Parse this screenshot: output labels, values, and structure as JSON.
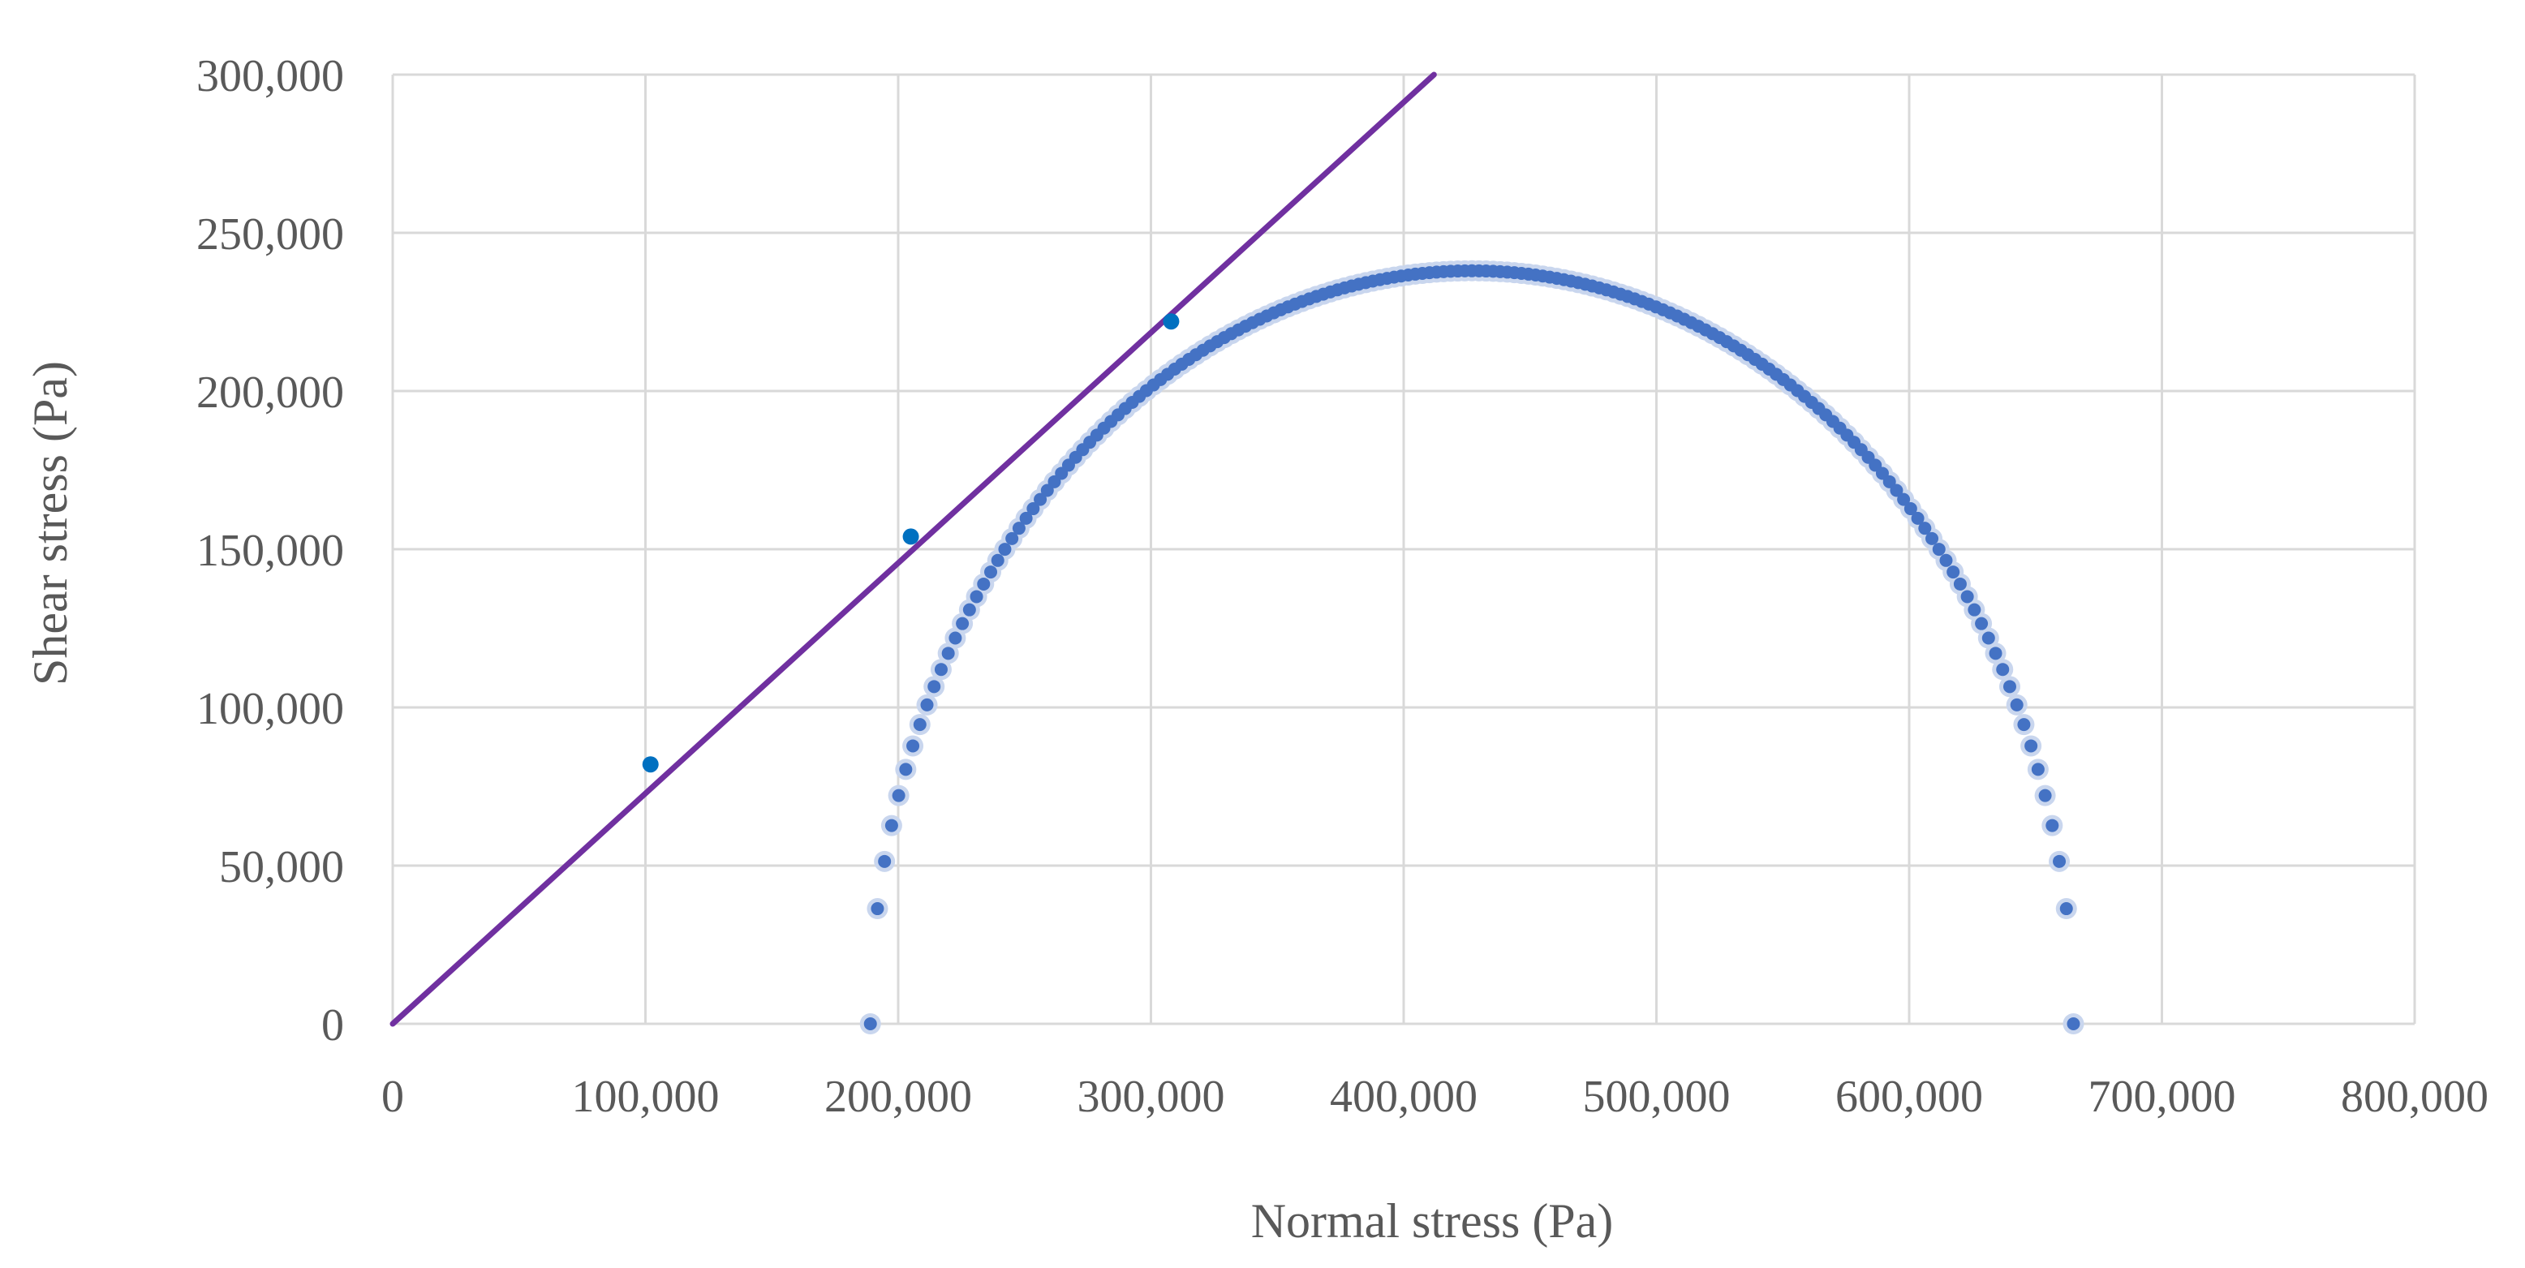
{
  "chart_data": {
    "type": "scatter",
    "title": "",
    "xlabel": "Normal stress (Pa)",
    "ylabel": "Shear stress (Pa)",
    "xlim": [
      0,
      800000
    ],
    "ylim": [
      0,
      300000
    ],
    "x_ticks": [
      0,
      100000,
      200000,
      300000,
      400000,
      500000,
      600000,
      700000,
      800000
    ],
    "y_ticks": [
      0,
      50000,
      100000,
      150000,
      200000,
      250000,
      300000
    ],
    "x_tick_labels": [
      "0",
      "100,000",
      "200,000",
      "300,000",
      "400,000",
      "500,000",
      "600,000",
      "700,000",
      "800,000"
    ],
    "y_tick_labels": [
      "0",
      "50,000",
      "100,000",
      "150,000",
      "200,000",
      "250,000",
      "300,000"
    ],
    "grid": true,
    "legend": "none",
    "series": [
      {
        "type": "scatter",
        "color": "#0070c0",
        "points": [
          {
            "x": 102000,
            "y": 82000
          },
          {
            "x": 205000,
            "y": 154000
          },
          {
            "x": 308000,
            "y": 222000
          }
        ]
      },
      {
        "type": "line",
        "color": "#7030a0",
        "points": [
          {
            "x": 0,
            "y": 0
          },
          {
            "x": 412000,
            "y": 300000
          }
        ]
      },
      {
        "type": "scatter",
        "color": "#4472c4",
        "shape": "semicircle",
        "center_x": 427000,
        "radius": 238000,
        "x_range": [
          189000,
          665000
        ],
        "marker_count": 170
      }
    ]
  }
}
